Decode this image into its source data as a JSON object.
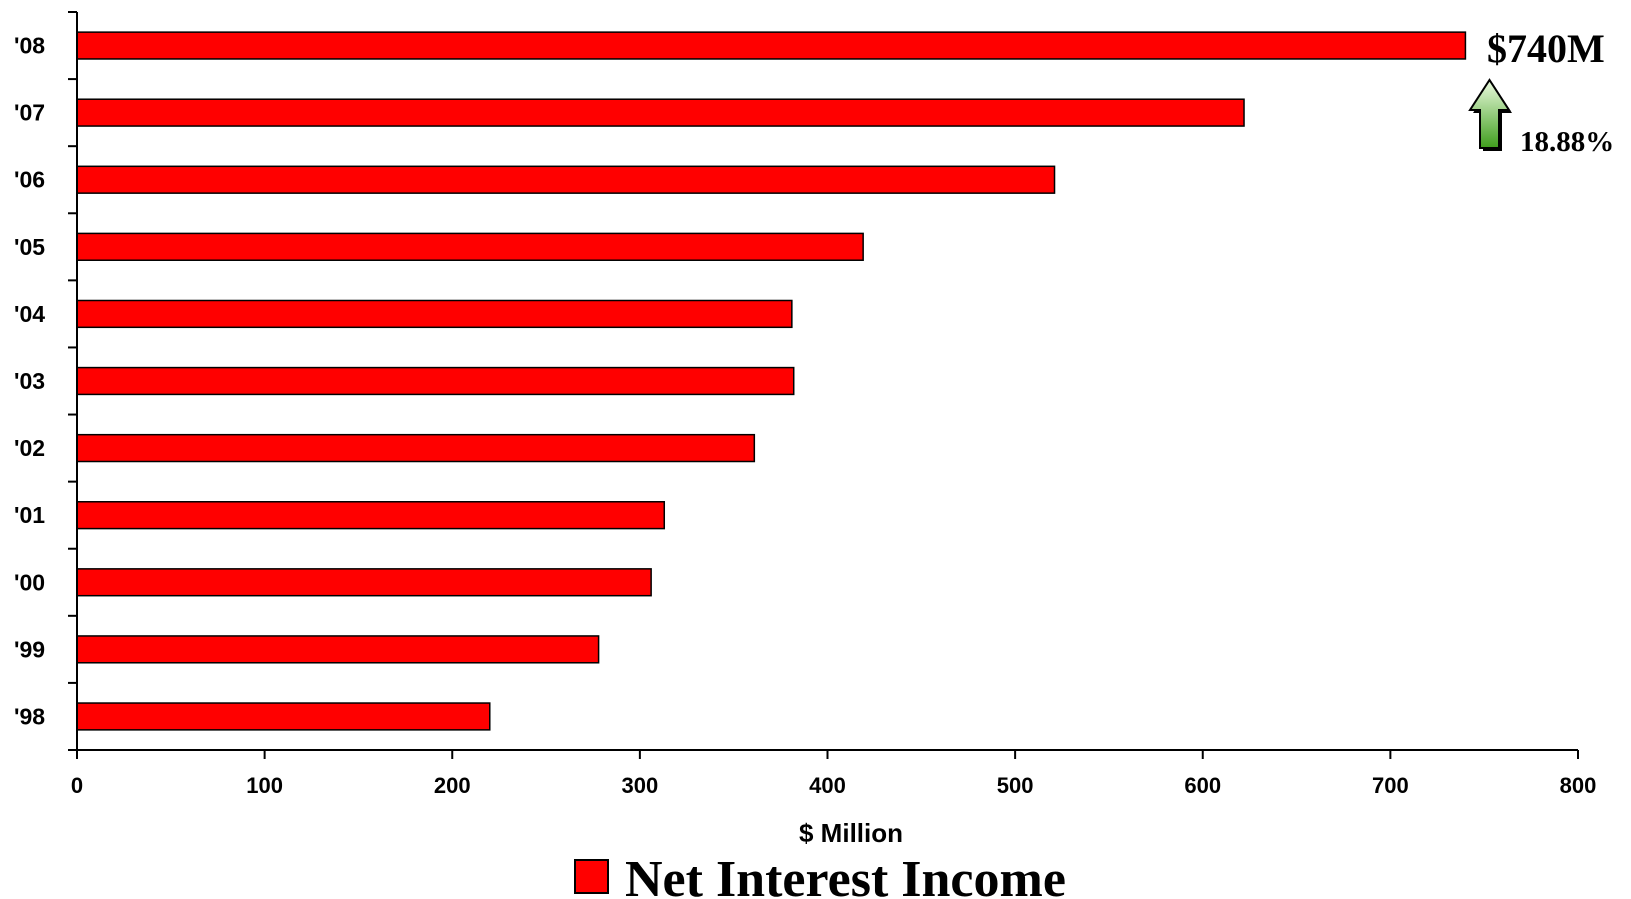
{
  "chart_data": {
    "type": "bar",
    "orientation": "horizontal",
    "categories": [
      "'98",
      "'99",
      "'00",
      "'01",
      "'02",
      "'03",
      "'04",
      "'05",
      "'06",
      "'07",
      "'08"
    ],
    "series": [
      {
        "name": "Net Interest Income",
        "values": [
          220,
          278,
          306,
          313,
          361,
          382,
          381,
          419,
          521,
          622,
          740
        ]
      }
    ],
    "xlabel": "$ Million",
    "ylabel": "",
    "xlim": [
      0,
      800
    ],
    "x_ticks": [
      "0",
      "100",
      "200",
      "300",
      "400",
      "500",
      "600",
      "700",
      "800"
    ],
    "grid": false,
    "legend_position": "bottom",
    "annotations": {
      "value_label": "$740M",
      "change_label": "18.88%",
      "arrow": "up-arrow-icon"
    }
  },
  "colors": {
    "bar_fill": "#ff0000",
    "bar_stroke": "#000000",
    "arrow_top": "#ecfbe0",
    "arrow_bottom": "#3f9e1d"
  }
}
